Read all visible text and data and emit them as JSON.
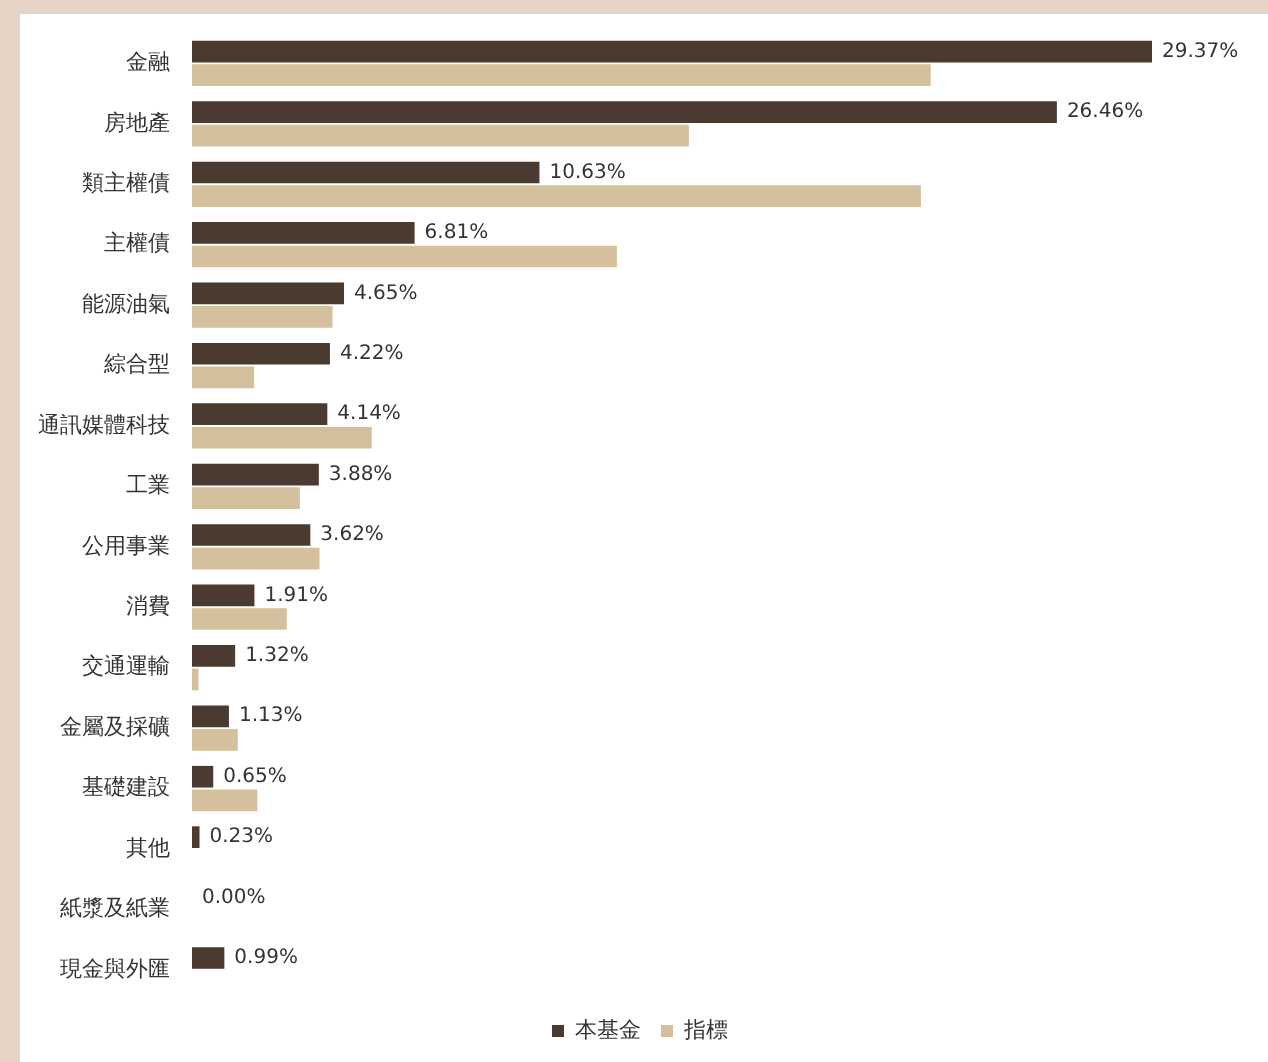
{
  "chart_data": {
    "type": "bar",
    "orientation": "horizontal",
    "categories": [
      "金融",
      "房地產",
      "類主權債",
      "主權債",
      "能源油氣",
      "綜合型",
      "通訊媒體科技",
      "工業",
      "公用事業",
      "消費",
      "交通運輸",
      "金屬及採礦",
      "基礎建設",
      "其他",
      "紙漿及紙業",
      "現金與外匯"
    ],
    "series": [
      {
        "name": "本基金",
        "color": "#4a3a30",
        "values": [
          29.37,
          26.46,
          10.63,
          6.81,
          4.65,
          4.22,
          4.14,
          3.88,
          3.62,
          1.91,
          1.32,
          1.13,
          0.65,
          0.23,
          0.0,
          0.99
        ],
        "value_labels": [
          "29.37%",
          "26.46%",
          "10.63%",
          "6.81%",
          "4.65%",
          "4.22%",
          "4.14%",
          "3.88%",
          "3.62%",
          "1.91%",
          "1.32%",
          "1.13%",
          "0.65%",
          "0.23%",
          "0.00%",
          "0.99%"
        ]
      },
      {
        "name": "指標",
        "color": "#d4c09c",
        "values": [
          22.6,
          15.2,
          22.3,
          13.0,
          4.3,
          1.9,
          5.5,
          3.3,
          3.9,
          2.9,
          0.2,
          1.4,
          2.0,
          null,
          null,
          null
        ]
      }
    ],
    "legend": "bottom"
  }
}
